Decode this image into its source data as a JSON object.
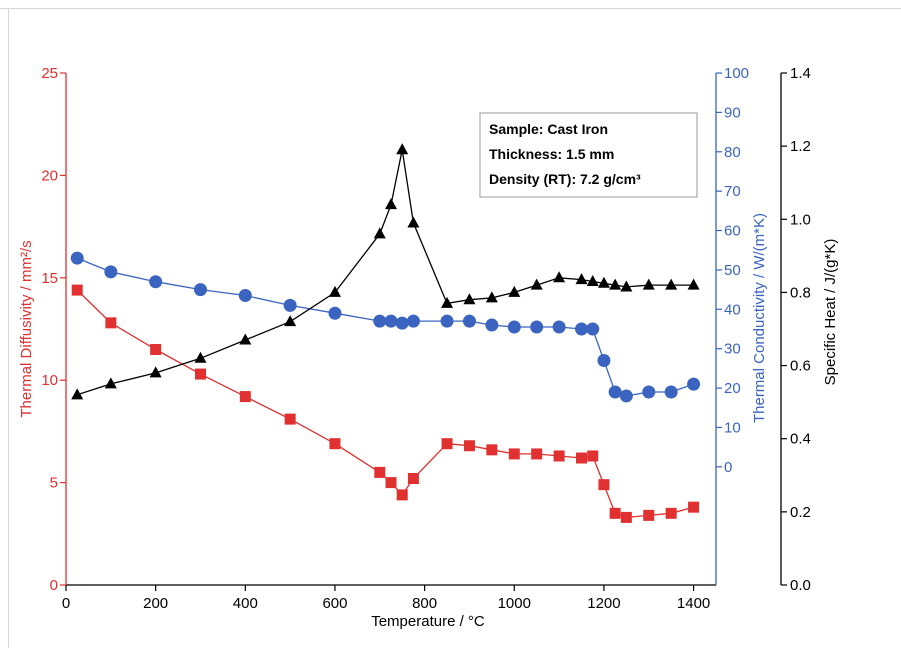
{
  "chart_data": {
    "type": "scatter",
    "title": "",
    "xlabel": "Temperature / °C",
    "xlim": [
      0,
      1450
    ],
    "xticks": [
      0,
      200,
      400,
      600,
      800,
      1000,
      1200,
      1400
    ],
    "grid": false,
    "colors": {
      "diffusivity": "#e03030",
      "conductivity": "#3a64c0",
      "specific_heat": "#000000",
      "left_axis": "#e03030",
      "right_axis_1": "#3a64c0",
      "right_axis_2": "#000000"
    },
    "axes": {
      "diffusivity": {
        "label": "Thermal Diffusivity / mm²/s",
        "lim": [
          0,
          25
        ],
        "ticks": [
          0,
          5,
          10,
          15,
          20,
          25
        ]
      },
      "conductivity": {
        "label": "Thermal Conductivity / W/(m*K)",
        "lim": [
          -30,
          100
        ],
        "ticks": [
          0,
          10,
          20,
          30,
          40,
          50,
          60,
          70,
          80,
          90,
          100
        ]
      },
      "specific_heat": {
        "label": "Specific Heat / J/(g*K)",
        "lim": [
          0,
          1.4
        ],
        "ticks": [
          "0.0",
          "0.2",
          "0.4",
          "0.6",
          "0.8",
          "1.0",
          "1.2",
          "1.4"
        ]
      }
    },
    "legend_box": {
      "placement": "top-right",
      "lines": [
        "Sample: Cast Iron",
        "Thickness: 1.5 mm",
        "Density (RT): 7.2 g/cm³"
      ]
    },
    "series": [
      {
        "key": "diffusivity",
        "marker": "square",
        "x": [
          25,
          100,
          200,
          300,
          400,
          500,
          600,
          700,
          725,
          750,
          775,
          850,
          900,
          950,
          1000,
          1050,
          1100,
          1150,
          1175,
          1200,
          1225,
          1250,
          1300,
          1350,
          1400
        ],
        "y": [
          14.4,
          12.8,
          11.5,
          10.3,
          9.2,
          8.1,
          6.9,
          5.5,
          5.0,
          4.4,
          5.2,
          6.9,
          6.8,
          6.6,
          6.4,
          6.4,
          6.3,
          6.2,
          6.3,
          4.9,
          3.5,
          3.3,
          3.4,
          3.5,
          3.8
        ]
      },
      {
        "key": "conductivity",
        "marker": "circle",
        "x": [
          25,
          100,
          200,
          300,
          400,
          500,
          600,
          700,
          725,
          750,
          775,
          850,
          900,
          950,
          1000,
          1050,
          1100,
          1150,
          1175,
          1200,
          1225,
          1250,
          1300,
          1350,
          1400
        ],
        "y": [
          53,
          49.5,
          47,
          45,
          43.5,
          41,
          39,
          37,
          37,
          36.5,
          37,
          37,
          37,
          36,
          35.5,
          35.5,
          35.5,
          35,
          35,
          27,
          19,
          18,
          19,
          19,
          21
        ]
      },
      {
        "key": "specific_heat",
        "marker": "triangle",
        "x": [
          25,
          100,
          200,
          300,
          400,
          500,
          600,
          700,
          725,
          750,
          775,
          850,
          900,
          950,
          1000,
          1050,
          1100,
          1150,
          1175,
          1200,
          1225,
          1250,
          1300,
          1350,
          1400
        ],
        "y": [
          0.52,
          0.55,
          0.58,
          0.62,
          0.67,
          0.72,
          0.8,
          0.96,
          1.04,
          1.19,
          0.99,
          0.77,
          0.78,
          0.785,
          0.8,
          0.82,
          0.84,
          0.835,
          0.83,
          0.825,
          0.82,
          0.815,
          0.82,
          0.82,
          0.82
        ]
      }
    ]
  }
}
